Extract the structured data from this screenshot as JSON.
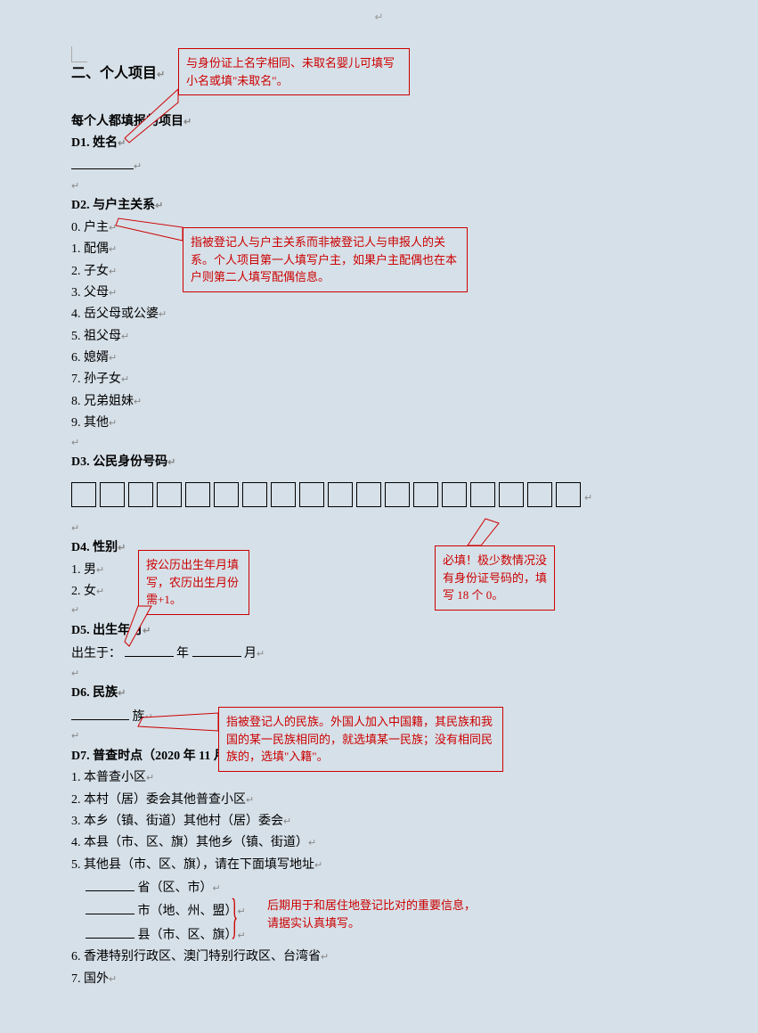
{
  "colors": {
    "background": "#d6e0e8",
    "text": "#000000",
    "callout_border": "#cc0000",
    "callout_text": "#cc0000",
    "para_mark": "#888888"
  },
  "typography": {
    "body_fontsize": 14,
    "title_fontsize": 16,
    "callout_fontsize": 13,
    "font_family": "SimSun"
  },
  "title": "二、个人项目",
  "subtitle": "每个人都填报的项目",
  "d1": {
    "label": "D1. 姓名",
    "callout": "与身份证上名字相同、未取名婴儿可填写小名或填\"未取名\"。"
  },
  "d2": {
    "label": "D2. 与户主关系",
    "options": [
      "0. 户主",
      "1. 配偶",
      "2. 子女",
      "3. 父母",
      "4. 岳父母或公婆",
      "5. 祖父母",
      "6. 媳婿",
      "7. 孙子女",
      "8. 兄弟姐妹",
      "9. 其他"
    ],
    "callout": "指被登记人与户主关系而非被登记人与申报人的关系。个人项目第一人填写户主，如果户主配偶也在本户则第二人填写配偶信息。"
  },
  "d3": {
    "label": "D3. 公民身份号码",
    "box_count": 18,
    "callout": "必填！极少数情况没有身份证号码的，填写 18 个 0。"
  },
  "d4": {
    "label": "D4. 性别",
    "options": [
      "1. 男",
      "2. 女"
    ],
    "callout": "按公历出生年月填写，农历出生月份需+1。"
  },
  "d5": {
    "label": "D5. 出生年月",
    "prefix": "出生于：",
    "year_label": "年",
    "month_label": "月"
  },
  "d6": {
    "label": "D6. 民族",
    "suffix": "族",
    "callout": "指被登记人的民族。外国人加入中国籍，其民族和我国的某一民族相同的，就选填某一民族；没有相同民族的，选填\"入籍\"。"
  },
  "d7": {
    "label": "D7. 普查时点（2020 年 11 月 1 日零时）居住地",
    "options": [
      "1. 本普查小区",
      "2. 本村（居）委会其他普查小区",
      "3. 本乡（镇、街道）其他村（居）委会",
      "4. 本县（市、区、旗）其他乡（镇、街道）",
      "5. 其他县（市、区、旗），请在下面填写地址",
      "6. 香港特别行政区、澳门特别行政区、台湾省",
      "7. 国外"
    ],
    "addr": {
      "l1": "省（区、市）",
      "l2": "市（地、州、盟）",
      "l3": "县（市、区、旗）"
    },
    "callout": "后期用于和居住地登记比对的重要信息，请据实认真填写。"
  }
}
